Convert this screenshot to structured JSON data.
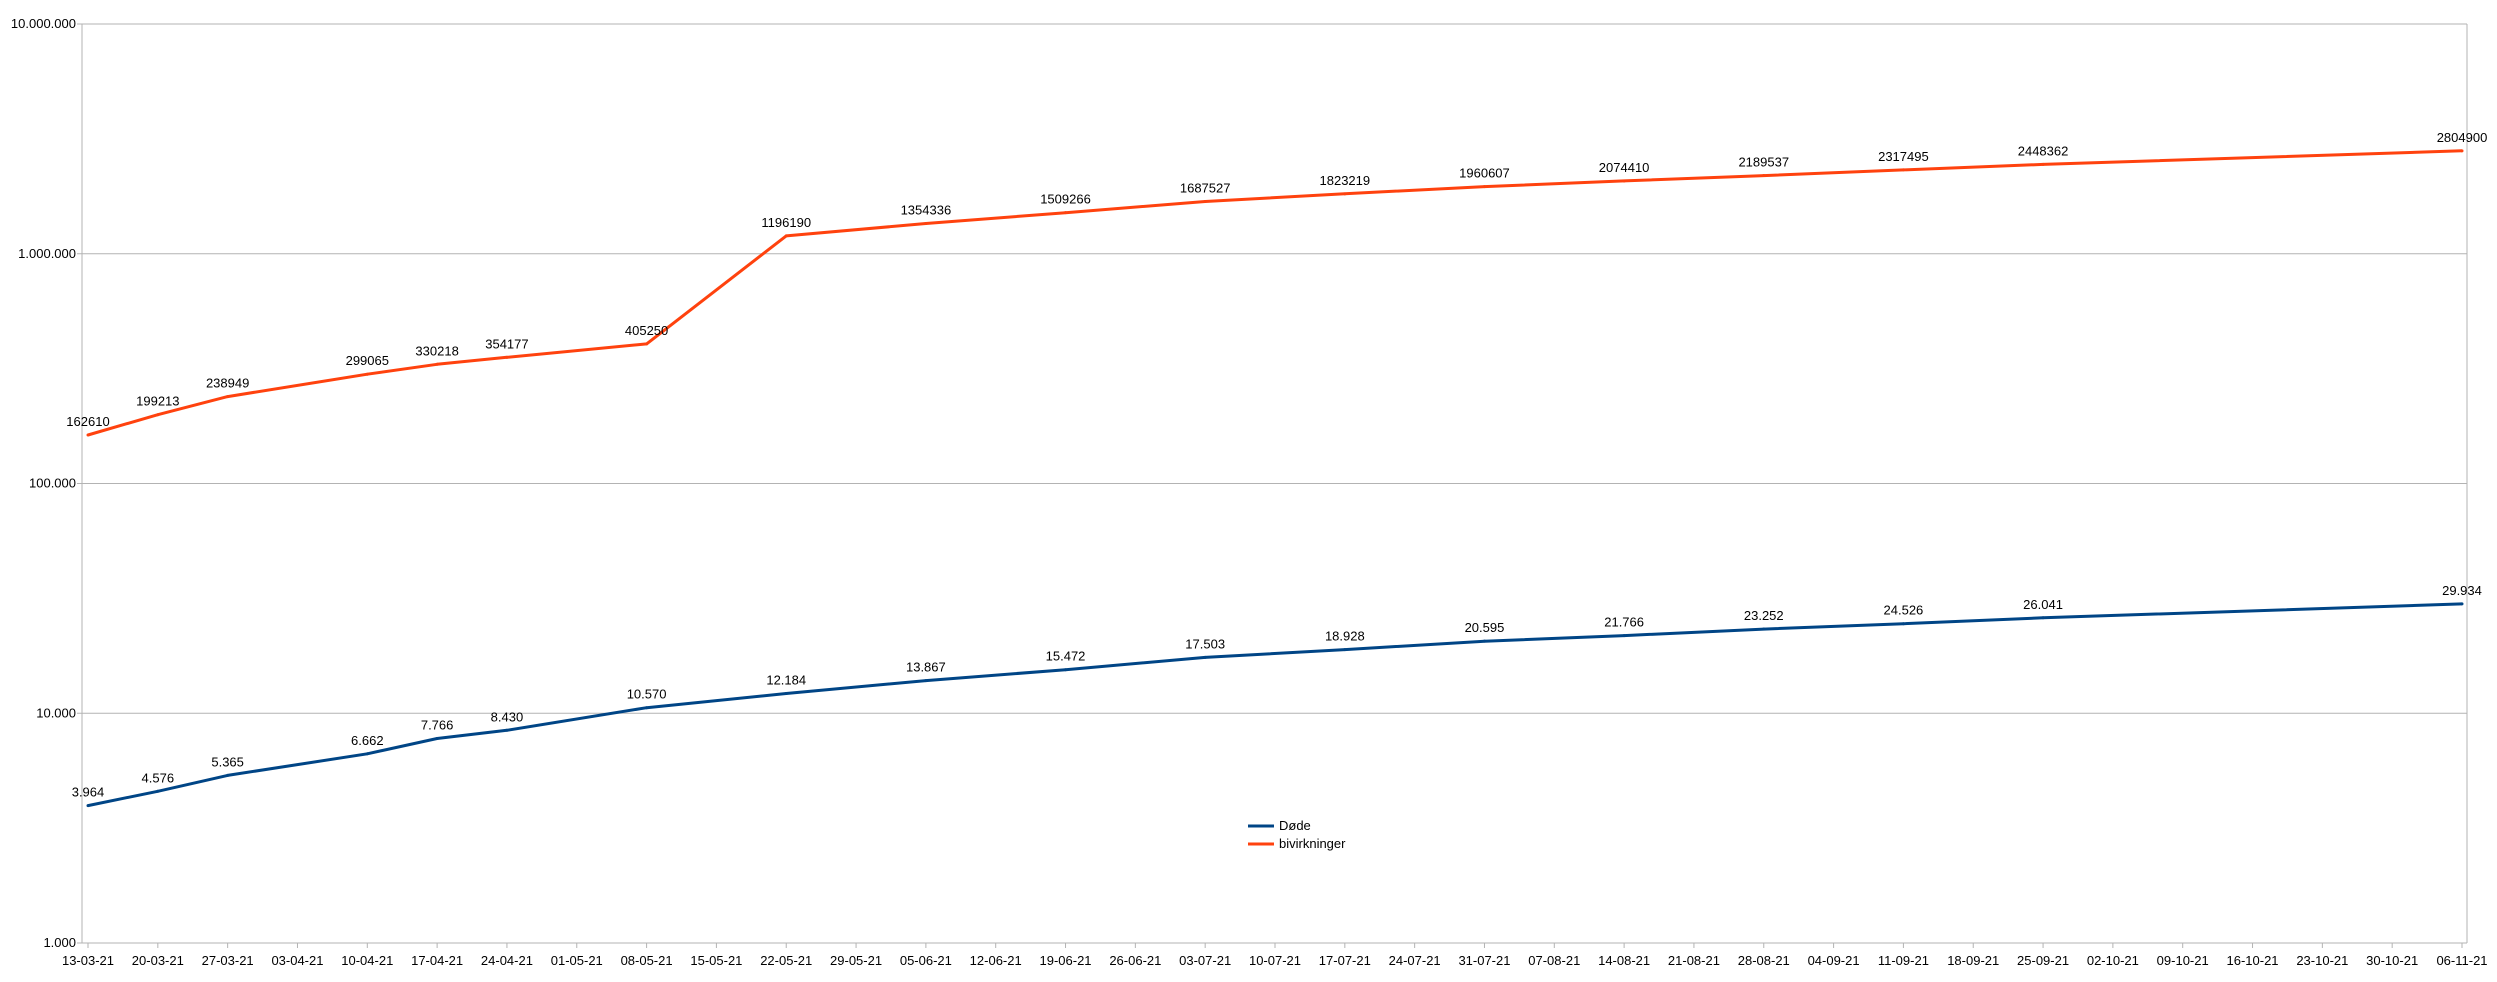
{
  "chart_data": {
    "type": "line",
    "title": "",
    "xlabel": "",
    "ylabel": "",
    "y_scale": "log",
    "ylim": [
      1000,
      10000000
    ],
    "y_ticks": [
      {
        "value": 1000,
        "label": "1.000"
      },
      {
        "value": 10000,
        "label": "10.000"
      },
      {
        "value": 100000,
        "label": "100.000"
      },
      {
        "value": 1000000,
        "label": "1.000.000"
      },
      {
        "value": 10000000,
        "label": "10.000.000"
      }
    ],
    "x_ticks": [
      "13-03-21",
      "20-03-21",
      "27-03-21",
      "03-04-21",
      "10-04-21",
      "17-04-21",
      "24-04-21",
      "01-05-21",
      "08-05-21",
      "15-05-21",
      "22-05-21",
      "29-05-21",
      "05-06-21",
      "12-06-21",
      "19-06-21",
      "26-06-21",
      "03-07-21",
      "10-07-21",
      "17-07-21",
      "24-07-21",
      "31-07-21",
      "07-08-21",
      "14-08-21",
      "21-08-21",
      "28-08-21",
      "04-09-21",
      "11-09-21",
      "18-09-21",
      "25-09-21",
      "02-10-21",
      "09-10-21",
      "16-10-21",
      "23-10-21",
      "30-10-21",
      "06-11-21"
    ],
    "grid": "horizontal",
    "legend_position": "bottom-center",
    "series": [
      {
        "name": "Døde",
        "color": "#004586",
        "points": [
          {
            "x": "13-03-21",
            "y": 3964,
            "label": "3.964"
          },
          {
            "x": "20-03-21",
            "y": 4576,
            "label": "4.576"
          },
          {
            "x": "27-03-21",
            "y": 5365,
            "label": "5.365"
          },
          {
            "x": "10-04-21",
            "y": 6662,
            "label": "6.662"
          },
          {
            "x": "17-04-21",
            "y": 7766,
            "label": "7.766"
          },
          {
            "x": "24-04-21",
            "y": 8430,
            "label": "8.430"
          },
          {
            "x": "08-05-21",
            "y": 10570,
            "label": "10.570"
          },
          {
            "x": "22-05-21",
            "y": 12184,
            "label": "12.184"
          },
          {
            "x": "05-06-21",
            "y": 13867,
            "label": "13.867"
          },
          {
            "x": "19-06-21",
            "y": 15472,
            "label": "15.472"
          },
          {
            "x": "03-07-21",
            "y": 17503,
            "label": "17.503"
          },
          {
            "x": "17-07-21",
            "y": 18928,
            "label": "18.928"
          },
          {
            "x": "31-07-21",
            "y": 20595,
            "label": "20.595"
          },
          {
            "x": "14-08-21",
            "y": 21766,
            "label": "21.766"
          },
          {
            "x": "28-08-21",
            "y": 23252,
            "label": "23.252"
          },
          {
            "x": "11-09-21",
            "y": 24526,
            "label": "24.526"
          },
          {
            "x": "25-09-21",
            "y": 26041,
            "label": "26.041"
          },
          {
            "x": "06-11-21",
            "y": 29934,
            "label": "29.934"
          }
        ]
      },
      {
        "name": "bivirkninger",
        "color": "#ff420e",
        "points": [
          {
            "x": "13-03-21",
            "y": 162610,
            "label": "162610"
          },
          {
            "x": "20-03-21",
            "y": 199213,
            "label": "199213"
          },
          {
            "x": "27-03-21",
            "y": 238949,
            "label": "238949"
          },
          {
            "x": "10-04-21",
            "y": 299065,
            "label": "299065"
          },
          {
            "x": "17-04-21",
            "y": 330218,
            "label": "330218"
          },
          {
            "x": "24-04-21",
            "y": 354177,
            "label": "354177"
          },
          {
            "x": "08-05-21",
            "y": 405250,
            "label": "405250"
          },
          {
            "x": "22-05-21",
            "y": 1196190,
            "label": "1196190"
          },
          {
            "x": "05-06-21",
            "y": 1354336,
            "label": "1354336"
          },
          {
            "x": "19-06-21",
            "y": 1509266,
            "label": "1509266"
          },
          {
            "x": "03-07-21",
            "y": 1687527,
            "label": "1687527"
          },
          {
            "x": "17-07-21",
            "y": 1823219,
            "label": "1823219"
          },
          {
            "x": "31-07-21",
            "y": 1960607,
            "label": "1960607"
          },
          {
            "x": "14-08-21",
            "y": 2074410,
            "label": "2074410"
          },
          {
            "x": "28-08-21",
            "y": 2189537,
            "label": "2189537"
          },
          {
            "x": "11-09-21",
            "y": 2317495,
            "label": "2317495"
          },
          {
            "x": "25-09-21",
            "y": 2448362,
            "label": "2448362"
          },
          {
            "x": "06-11-21",
            "y": 2804900,
            "label": "2804900"
          }
        ]
      }
    ]
  }
}
